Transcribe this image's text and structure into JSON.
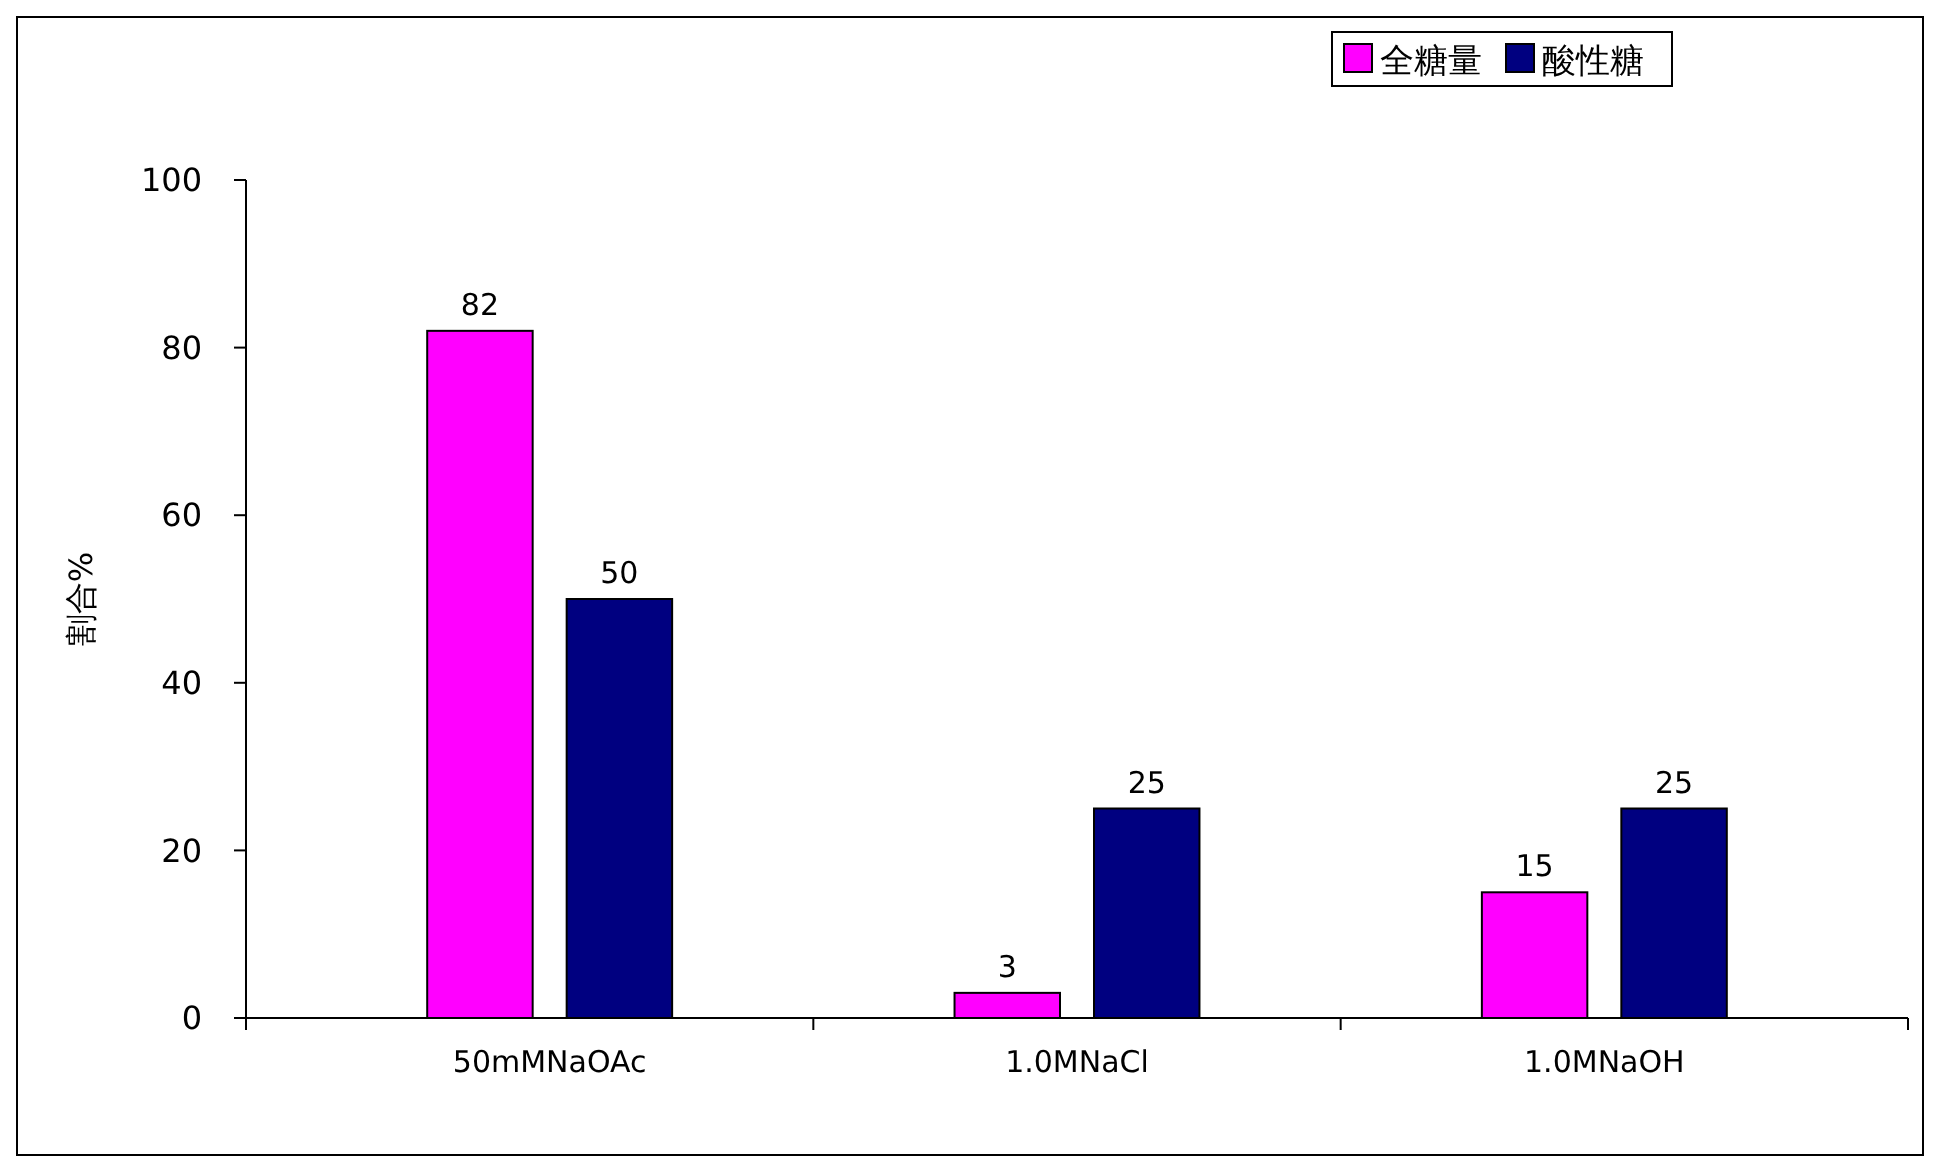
{
  "chart_data": {
    "type": "bar",
    "ylabel": "割合%",
    "categories": [
      "50mMNaOAc",
      "1.0MNaCl",
      "1.0MNaOH"
    ],
    "series": [
      {
        "name": "全糖量",
        "color": "#ff00ff",
        "values": [
          82,
          3,
          15
        ]
      },
      {
        "name": "酸性糖",
        "color": "#000080",
        "values": [
          50,
          25,
          25
        ]
      }
    ],
    "ylim": [
      0,
      100
    ],
    "yticks": [
      0,
      20,
      40,
      60,
      80,
      100
    ],
    "data_labels": true,
    "legend": "top right",
    "grid": false
  }
}
